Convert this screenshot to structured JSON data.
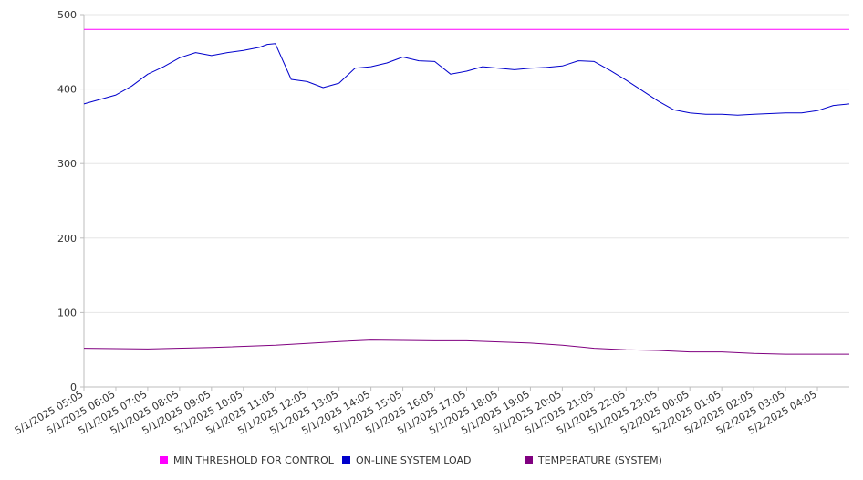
{
  "chart_data": {
    "type": "line",
    "title": "",
    "xlabel": "",
    "ylabel": "",
    "ylim": [
      0,
      500
    ],
    "y_ticks": [
      0,
      100,
      200,
      300,
      400,
      500
    ],
    "grid": true,
    "legend_position": "bottom",
    "x_tick_labels": [
      "5/1/2025 05:05",
      "5/1/2025 06:05",
      "5/1/2025 07:05",
      "5/1/2025 08:05",
      "5/1/2025 09:05",
      "5/1/2025 10:05",
      "5/1/2025 11:05",
      "5/1/2025 12:05",
      "5/1/2025 13:05",
      "5/1/2025 14:05",
      "5/1/2025 15:05",
      "5/1/2025 16:05",
      "5/1/2025 17:05",
      "5/1/2025 18:05",
      "5/1/2025 19:05",
      "5/1/2025 20:05",
      "5/1/2025 21:05",
      "5/1/2025 22:05",
      "5/1/2025 23:05",
      "5/2/2025 00:05",
      "5/2/2025 01:05",
      "5/2/2025 02:05",
      "5/2/2025 03:05",
      "5/2/2025 04:05"
    ],
    "series": [
      {
        "name": "MIN THRESHOLD FOR CONTROL",
        "color": "#ff00ff",
        "x": [
          "5/1/2025 05:05",
          "5/2/2025 05:05"
        ],
        "values": [
          480,
          480
        ]
      },
      {
        "name": "ON-LINE SYSTEM LOAD",
        "color": "#0000cc",
        "x": [
          "5/1/2025 05:05",
          "5/1/2025 05:35",
          "5/1/2025 06:05",
          "5/1/2025 06:35",
          "5/1/2025 07:05",
          "5/1/2025 07:35",
          "5/1/2025 08:05",
          "5/1/2025 08:35",
          "5/1/2025 09:05",
          "5/1/2025 09:35",
          "5/1/2025 10:05",
          "5/1/2025 10:35",
          "5/1/2025 10:50",
          "5/1/2025 11:05",
          "5/1/2025 11:35",
          "5/1/2025 12:05",
          "5/1/2025 12:35",
          "5/1/2025 13:05",
          "5/1/2025 13:35",
          "5/1/2025 14:05",
          "5/1/2025 14:35",
          "5/1/2025 15:05",
          "5/1/2025 15:35",
          "5/1/2025 16:05",
          "5/1/2025 16:35",
          "5/1/2025 17:05",
          "5/1/2025 17:35",
          "5/1/2025 18:05",
          "5/1/2025 18:35",
          "5/1/2025 19:05",
          "5/1/2025 19:35",
          "5/1/2025 20:05",
          "5/1/2025 20:35",
          "5/1/2025 21:05",
          "5/1/2025 21:35",
          "5/1/2025 22:05",
          "5/1/2025 22:35",
          "5/1/2025 23:05",
          "5/1/2025 23:35",
          "5/2/2025 00:05",
          "5/2/2025 00:35",
          "5/2/2025 01:05",
          "5/2/2025 01:35",
          "5/2/2025 02:05",
          "5/2/2025 02:35",
          "5/2/2025 03:05",
          "5/2/2025 03:35",
          "5/2/2025 04:05",
          "5/2/2025 04:35",
          "5/2/2025 05:05"
        ],
        "values": [
          380,
          386,
          392,
          404,
          420,
          430,
          442,
          449,
          445,
          449,
          452,
          456,
          460,
          461,
          413,
          410,
          402,
          408,
          428,
          430,
          435,
          443,
          438,
          437,
          420,
          424,
          430,
          428,
          426,
          428,
          429,
          431,
          438,
          437,
          425,
          412,
          398,
          384,
          372,
          368,
          366,
          366,
          365,
          366,
          367,
          368,
          368,
          371,
          378,
          380
        ]
      },
      {
        "name": "TEMPERATURE (SYSTEM)",
        "color": "#800080",
        "x": [
          "5/1/2025 05:05",
          "5/1/2025 07:05",
          "5/1/2025 09:05",
          "5/1/2025 11:05",
          "5/1/2025 13:05",
          "5/1/2025 14:05",
          "5/1/2025 16:05",
          "5/1/2025 17:05",
          "5/1/2025 19:05",
          "5/1/2025 20:05",
          "5/1/2025 21:05",
          "5/1/2025 22:05",
          "5/1/2025 23:05",
          "5/2/2025 00:05",
          "5/2/2025 01:05",
          "5/2/2025 02:05",
          "5/2/2025 03:05",
          "5/2/2025 04:05",
          "5/2/2025 05:05"
        ],
        "values": [
          52,
          51,
          53,
          56,
          61,
          63,
          62,
          62,
          59,
          56,
          52,
          50,
          49,
          47,
          47,
          45,
          44,
          44,
          44
        ]
      }
    ]
  }
}
